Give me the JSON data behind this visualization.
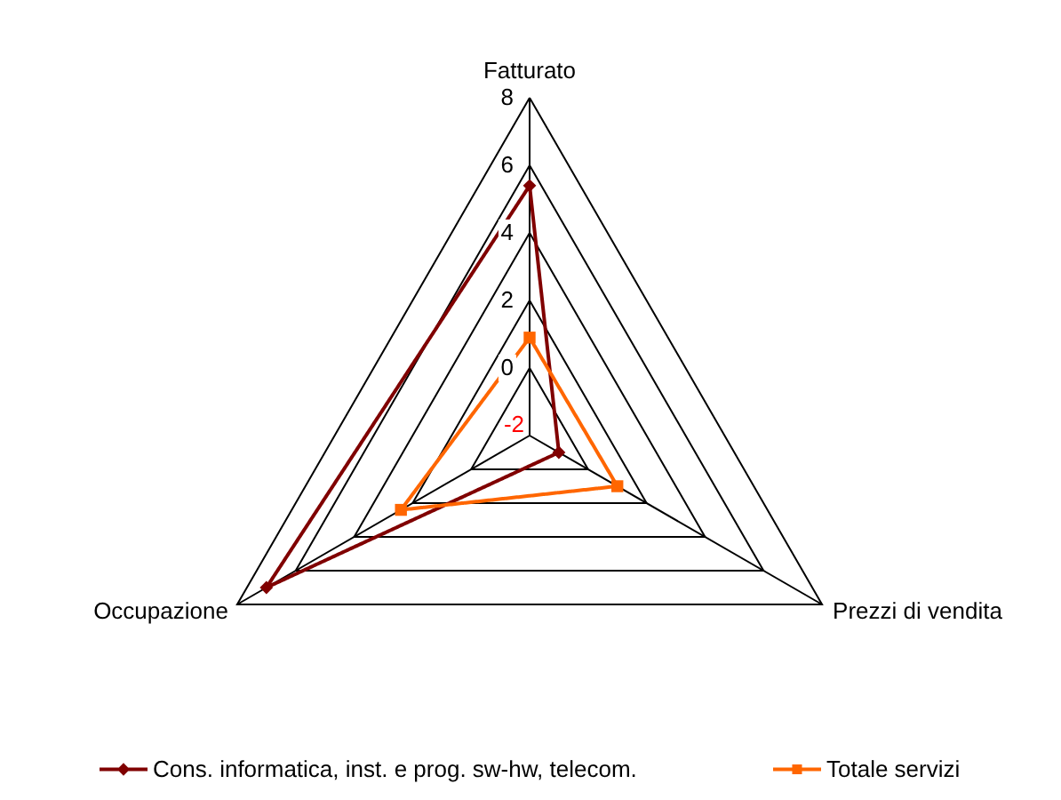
{
  "chart_data": {
    "type": "radar",
    "categories": [
      "Fatturato",
      "Prezzi di vendita",
      "Occupazione"
    ],
    "series": [
      {
        "name": "Cons. informatica, inst. e prog. sw-hw, telecom.",
        "color": "#800000",
        "marker": "diamond",
        "values": [
          5.4,
          -1.0,
          7.0
        ]
      },
      {
        "name": "Totale servizi",
        "color": "#ff6600",
        "marker": "square",
        "values": [
          0.9,
          1.0,
          2.4
        ]
      }
    ],
    "ylim": [
      -2,
      8
    ],
    "yticks": [
      -2,
      0,
      2,
      4,
      6,
      8
    ],
    "grid": true,
    "legend": "bottom"
  }
}
